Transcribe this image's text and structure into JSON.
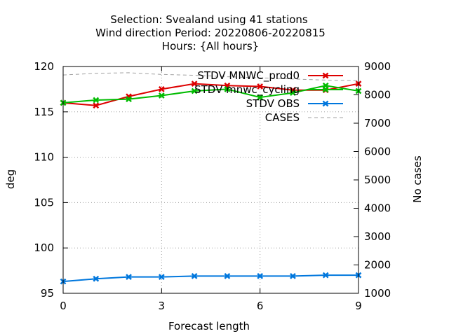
{
  "chart_data": {
    "type": "line",
    "title_lines": [
      "Selection: Svealand using    41 stations",
      "Wind direction   Period: 20220806-20220815",
      "Hours: {All hours}"
    ],
    "xlabel": "Forecast length",
    "ylabel": "deg",
    "y2label": "No cases",
    "x": [
      0,
      1,
      2,
      3,
      4,
      5,
      6,
      7,
      8,
      9
    ],
    "xlim": [
      0,
      9
    ],
    "xticks": [
      0,
      3,
      6,
      9
    ],
    "ylim": [
      95,
      120
    ],
    "yticks": [
      95,
      100,
      105,
      110,
      115,
      120
    ],
    "y2lim": [
      1000,
      9000
    ],
    "y2ticks": [
      1000,
      2000,
      3000,
      4000,
      5000,
      6000,
      7000,
      8000,
      9000
    ],
    "grid": true,
    "legend_position": "top-right",
    "series": [
      {
        "name": "STDV MNWC_prod0",
        "axis": "y1",
        "color": "#dd0000",
        "marker": "x",
        "values": [
          116.0,
          115.7,
          116.7,
          117.5,
          118.1,
          117.9,
          117.8,
          117.4,
          117.4,
          118.1
        ]
      },
      {
        "name": "STDV mnwc_cycling",
        "axis": "y1",
        "color": "#00bb00",
        "marker": "x",
        "values": [
          116.0,
          116.3,
          116.4,
          116.8,
          117.3,
          117.5,
          116.6,
          117.1,
          117.9,
          117.3
        ]
      },
      {
        "name": "STDV OBS",
        "axis": "y1",
        "color": "#0077dd",
        "marker": "x",
        "values": [
          96.3,
          96.6,
          96.8,
          96.8,
          96.9,
          96.9,
          96.9,
          96.9,
          97.0,
          97.0
        ]
      },
      {
        "name": "CASES",
        "axis": "y2",
        "color": "#a0a0a0",
        "dash": true,
        "values": [
          8700,
          8760,
          8780,
          8720,
          8690,
          8640,
          8600,
          8560,
          8520,
          8500
        ]
      }
    ]
  }
}
